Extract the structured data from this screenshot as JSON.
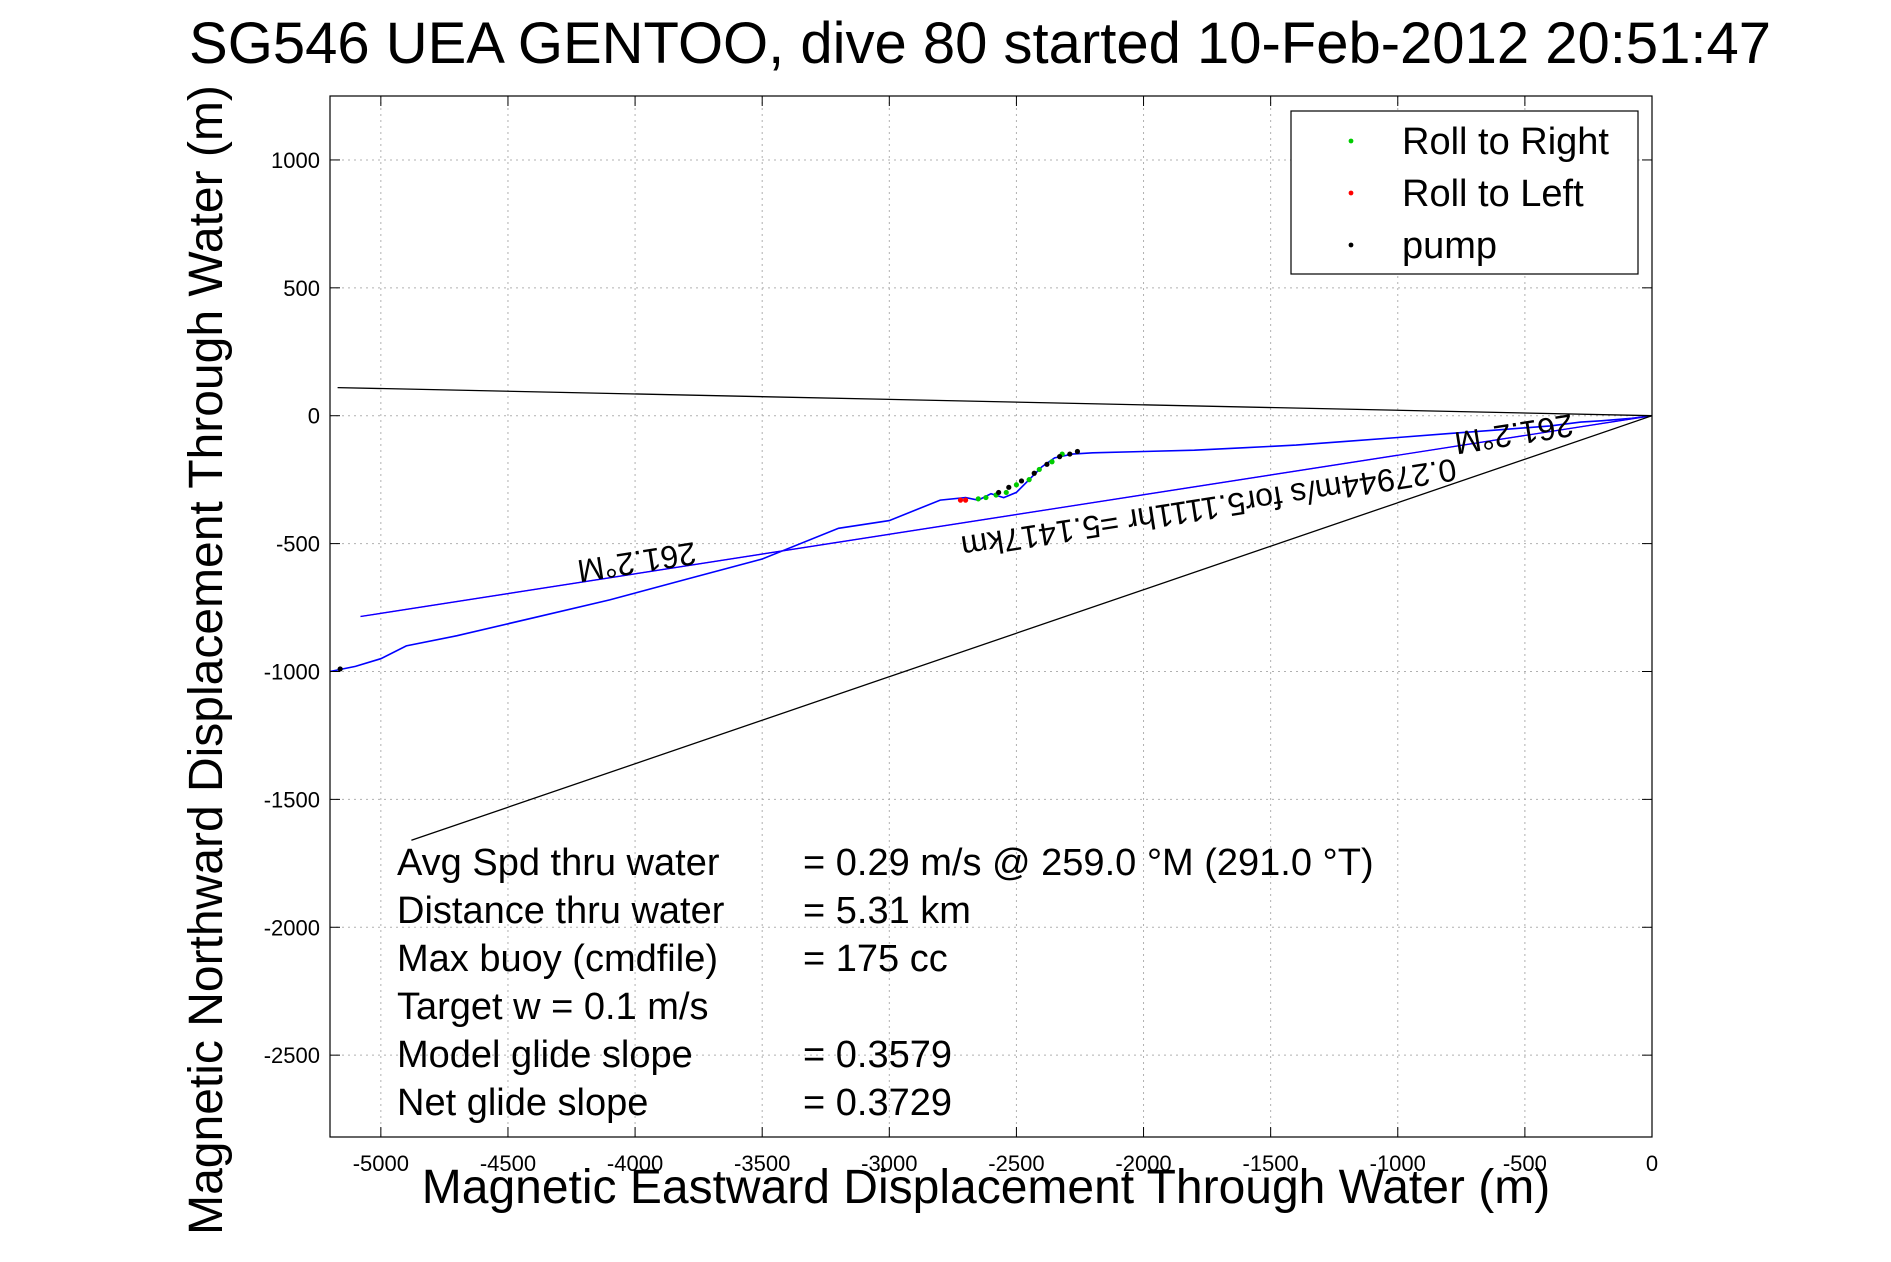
{
  "chart_data": {
    "type": "line",
    "title": "SG546 UEA GENTOO, dive 80 started 10-Feb-2012 20:51:47",
    "xlabel": "Magnetic Eastward Displacement Through Water (m)",
    "ylabel": "Magnetic Northward Displacement Through Water (m)",
    "xlim": [
      -5200,
      0
    ],
    "ylim": [
      -2820,
      1250
    ],
    "xticks": [
      -5000,
      -4500,
      -4000,
      -3500,
      -3000,
      -2500,
      -2000,
      -1500,
      -1000,
      -500,
      0
    ],
    "yticks": [
      1000,
      500,
      0,
      -500,
      -1000,
      -1500,
      -2000,
      -2500
    ],
    "grid": true,
    "legend_position": "top-right",
    "legend": [
      {
        "label": "Roll to Right",
        "color": "#00cc00"
      },
      {
        "label": "Roll to Left",
        "color": "#ff0000"
      },
      {
        "label": "pump",
        "color": "#000000"
      }
    ],
    "series": [
      {
        "color": "#0000ff",
        "x": [
          0,
          -80,
          -200,
          -280,
          -400,
          -600,
          -800,
          -1000,
          -1200,
          -1400,
          -1600,
          -1800,
          -2000,
          -2200,
          -2280,
          -2350,
          -2400,
          -2450,
          -2500,
          -2550,
          -2600,
          -2650,
          -2700,
          -2800,
          -3000,
          -3200,
          -3500,
          -3800,
          -4100,
          -4400,
          -4700,
          -4900,
          -5000,
          -5100,
          -5200
        ],
        "y": [
          0,
          -10,
          -20,
          -25,
          -40,
          -55,
          -70,
          -85,
          -100,
          -115,
          -125,
          -135,
          -140,
          -145,
          -150,
          -165,
          -200,
          -250,
          -300,
          -320,
          -305,
          -330,
          -320,
          -330,
          -410,
          -440,
          -560,
          -640,
          -720,
          -790,
          -860,
          -900,
          -950,
          -980,
          -1000
        ]
      },
      {
        "color": "#ff00ff",
        "x": [
          0,
          -5080
        ],
        "y": [
          0,
          -785
        ]
      },
      {
        "color": "#0000ff",
        "x": [
          0,
          -5080
        ],
        "y": [
          0,
          -785
        ]
      },
      {
        "color": "#000000",
        "x": [
          0,
          -5170
        ],
        "y": [
          0,
          110
        ]
      },
      {
        "color": "#000000",
        "x": [
          0,
          -4880
        ],
        "y": [
          0,
          -1660
        ]
      }
    ],
    "roll_right": {
      "x": [
        -2320,
        -2360,
        -2410,
        -2450,
        -2500,
        -2540,
        -2580,
        -2620,
        -2650
      ],
      "y": [
        -150,
        -180,
        -210,
        -250,
        -270,
        -300,
        -310,
        -320,
        -325
      ]
    },
    "roll_left": {
      "x": [
        -2700,
        -2720
      ],
      "y": [
        -330,
        -330
      ]
    },
    "pump": {
      "x": [
        -2260,
        -2290,
        -2330,
        -2380,
        -2430,
        -2480,
        -2530,
        -2570,
        -5160
      ],
      "y": [
        -140,
        -150,
        -160,
        -190,
        -225,
        -255,
        -280,
        -300,
        -990
      ]
    },
    "annotations": [
      {
        "text": "261.2°M",
        "x": -4000,
        "y": -530,
        "angle": 171
      },
      {
        "text": "261.2°M",
        "x": -550,
        "y": -30,
        "angle": 171
      },
      {
        "text": "0.27944m/s for5.1111hr =5.1417km",
        "x": -1750,
        "y": -320,
        "angle": 171
      }
    ],
    "stats": [
      {
        "label": "Avg Spd thru water",
        "value": "=  0.29 m/s @ 259.0 °M (291.0 °T)"
      },
      {
        "label": "Distance thru water",
        "value": "=  5.31 km"
      },
      {
        "label": "Max buoy (cmdfile)",
        "value": "= 175 cc"
      },
      {
        "label": "Target w    = 0.1 m/s",
        "value": ""
      },
      {
        "label": "Model glide slope",
        "value": "= 0.3579"
      },
      {
        "label": "Net glide slope",
        "value": "= 0.3729"
      }
    ]
  }
}
